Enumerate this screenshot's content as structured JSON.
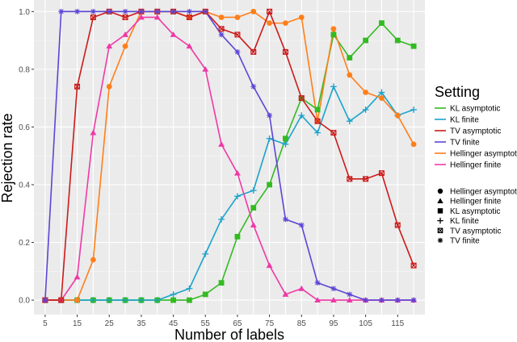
{
  "chart_data": {
    "type": "line",
    "title": "",
    "xlabel": "Number of labels",
    "ylabel": "Rejection rate",
    "x": [
      5,
      10,
      15,
      20,
      25,
      30,
      35,
      40,
      45,
      50,
      55,
      60,
      65,
      70,
      75,
      80,
      85,
      90,
      95,
      100,
      105,
      110,
      115,
      120
    ],
    "x_ticks": [
      5,
      15,
      25,
      35,
      45,
      55,
      65,
      75,
      85,
      95,
      105,
      115
    ],
    "y_ticks": [
      0.0,
      0.2,
      0.4,
      0.6,
      0.8,
      1.0
    ],
    "y_tick_labels": [
      "0.0",
      "0.2",
      "0.4",
      "0.6",
      "0.8",
      "1.0"
    ],
    "xlim": [
      1.5,
      123.5
    ],
    "ylim": [
      -0.05,
      1.04
    ],
    "grid": true,
    "legend": {
      "placement": "right",
      "title": "Setting",
      "color_entries": [
        "KL asymptotic",
        "KL finite",
        "TV asymptotic",
        "TV finite",
        "Hellinger asymptotic",
        "Hellinger finite"
      ],
      "shape_entries": [
        "Hellinger asymptotic",
        "Hellinger finite",
        "KL asymptotic",
        "KL finite",
        "TV asymptotic",
        "TV finite"
      ]
    },
    "series": [
      {
        "name": "KL asymptotic",
        "color": "#33bb22",
        "marker": "square",
        "values": [
          0,
          0,
          0,
          0,
          0,
          0,
          0,
          0,
          0,
          0,
          0.02,
          0.06,
          0.22,
          0.32,
          0.4,
          0.56,
          0.7,
          0.66,
          0.92,
          0.84,
          0.9,
          0.96,
          0.9,
          0.88
        ]
      },
      {
        "name": "KL finite",
        "color": "#1aa3cc",
        "marker": "plus",
        "values": [
          0,
          0,
          0,
          0,
          0,
          0,
          0,
          0,
          0.02,
          0.04,
          0.16,
          0.28,
          0.36,
          0.38,
          0.56,
          0.54,
          0.64,
          0.58,
          0.74,
          0.62,
          0.66,
          0.72,
          0.64,
          0.66
        ]
      },
      {
        "name": "TV asymptotic",
        "color": "#cc1a1a",
        "marker": "boxx",
        "values": [
          0,
          0,
          0.74,
          0.98,
          1.0,
          0.98,
          1.0,
          1.0,
          1.0,
          0.98,
          1.0,
          0.94,
          0.92,
          0.86,
          1.0,
          0.86,
          0.7,
          0.62,
          0.58,
          0.42,
          0.42,
          0.44,
          0.26,
          0.12
        ]
      },
      {
        "name": "TV finite",
        "color": "#5b45d6",
        "marker": "asterisk",
        "values": [
          0,
          1.0,
          1.0,
          1.0,
          1.0,
          1.0,
          1.0,
          1.0,
          1.0,
          1.0,
          1.0,
          0.92,
          0.86,
          0.74,
          0.64,
          0.28,
          0.26,
          0.06,
          0.04,
          0.02,
          0,
          0,
          0,
          0
        ]
      },
      {
        "name": "Hellinger asymptotic",
        "color": "#ff7f1a",
        "marker": "circle",
        "values": [
          0,
          0,
          0,
          0.14,
          0.74,
          0.88,
          1.0,
          1.0,
          1.0,
          0.98,
          1.0,
          0.98,
          0.98,
          1.0,
          0.96,
          0.96,
          0.98,
          0.62,
          0.94,
          0.78,
          0.72,
          0.7,
          0.64,
          0.54
        ]
      },
      {
        "name": "Hellinger finite",
        "color": "#ee3aa6",
        "marker": "triangle",
        "values": [
          0,
          0,
          0.08,
          0.58,
          0.88,
          0.92,
          0.98,
          0.98,
          0.92,
          0.88,
          0.8,
          0.54,
          0.44,
          0.26,
          0.12,
          0.02,
          0.04,
          0,
          0,
          0,
          0,
          0,
          0,
          0
        ]
      }
    ]
  }
}
